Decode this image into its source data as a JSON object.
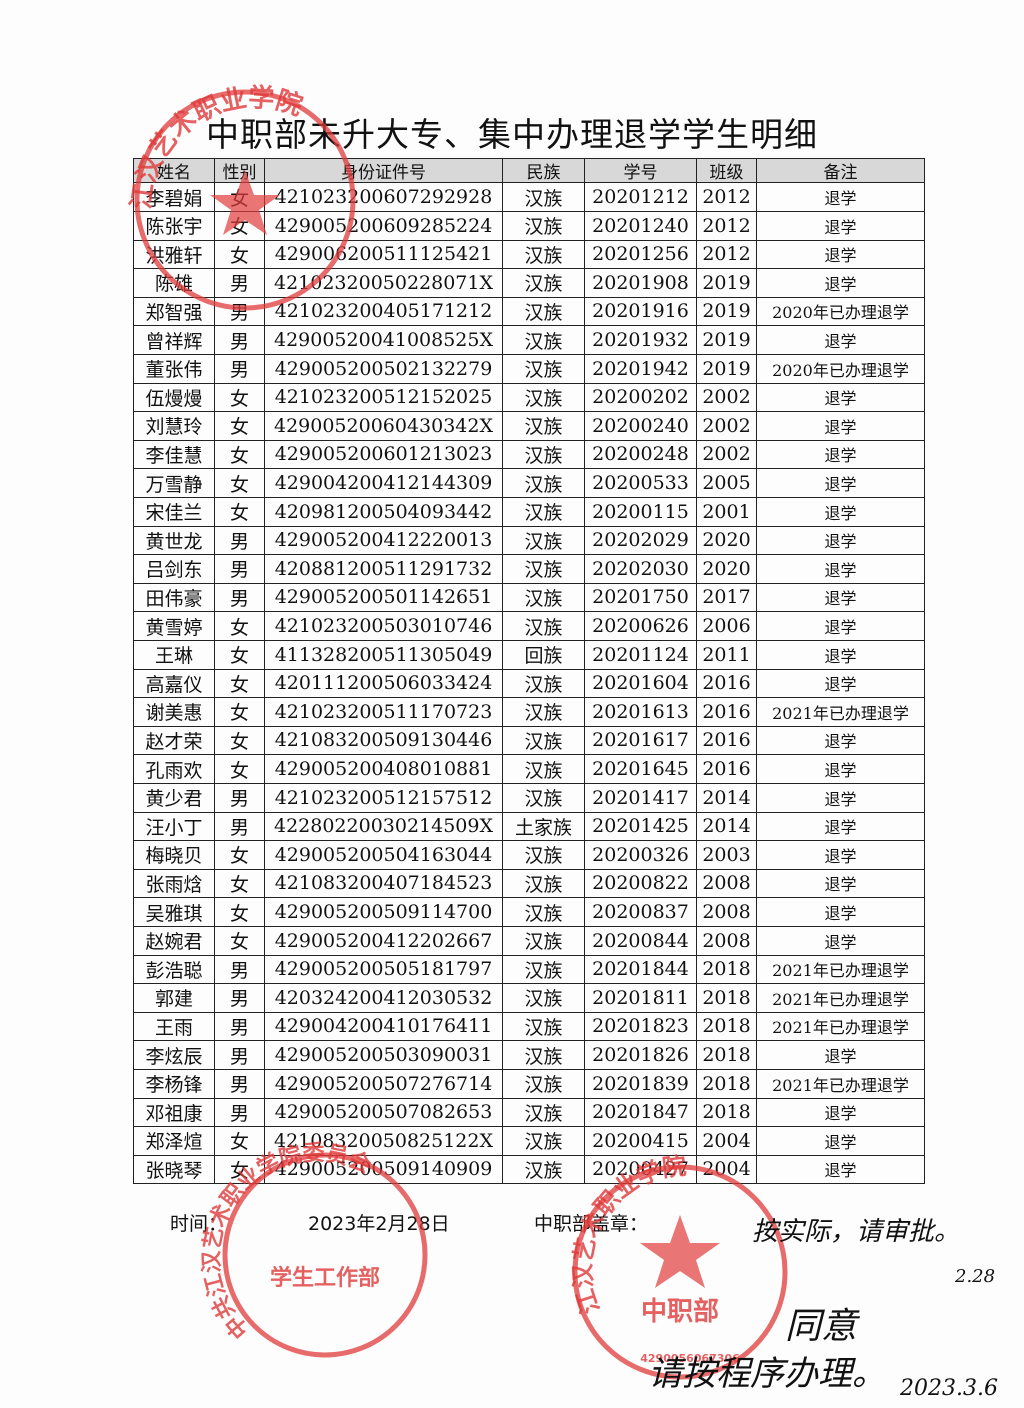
{
  "title": "中职部未升大专、集中办理退学学生明细",
  "table": {
    "header": [
      "姓名",
      "性别",
      "身份证件号",
      "民族",
      "学号",
      "班级",
      "备注"
    ],
    "rows": [
      [
        "李碧娟",
        "女",
        "421023200607292928",
        "汉族",
        "20201212",
        "2012",
        "退学"
      ],
      [
        "陈张宇",
        "女",
        "429005200609285224",
        "汉族",
        "20201240",
        "2012",
        "退学"
      ],
      [
        "洪雅轩",
        "女",
        "429006200511125421",
        "汉族",
        "20201256",
        "2012",
        "退学"
      ],
      [
        "陈雄",
        "男",
        "42102320050228071X",
        "汉族",
        "20201908",
        "2019",
        "退学"
      ],
      [
        "郑智强",
        "男",
        "421023200405171212",
        "汉族",
        "20201916",
        "2019",
        "2020年已办理退学"
      ],
      [
        "曾祥辉",
        "男",
        "42900520041008525X",
        "汉族",
        "20201932",
        "2019",
        "退学"
      ],
      [
        "董张伟",
        "男",
        "429005200502132279",
        "汉族",
        "20201942",
        "2019",
        "2020年已办理退学"
      ],
      [
        "伍熳熳",
        "女",
        "421023200512152025",
        "汉族",
        "20200202",
        "2002",
        "退学"
      ],
      [
        "刘慧玲",
        "女",
        "42900520060430342X",
        "汉族",
        "20200240",
        "2002",
        "退学"
      ],
      [
        "李佳慧",
        "女",
        "429005200601213023",
        "汉族",
        "20200248",
        "2002",
        "退学"
      ],
      [
        "万雪静",
        "女",
        "429004200412144309",
        "汉族",
        "20200533",
        "2005",
        "退学"
      ],
      [
        "宋佳兰",
        "女",
        "420981200504093442",
        "汉族",
        "20200115",
        "2001",
        "退学"
      ],
      [
        "黄世龙",
        "男",
        "429005200412220013",
        "汉族",
        "20202029",
        "2020",
        "退学"
      ],
      [
        "吕剑东",
        "男",
        "420881200511291732",
        "汉族",
        "20202030",
        "2020",
        "退学"
      ],
      [
        "田伟豪",
        "男",
        "429005200501142651",
        "汉族",
        "20201750",
        "2017",
        "退学"
      ],
      [
        "黄雪婷",
        "女",
        "421023200503010746",
        "汉族",
        "20200626",
        "2006",
        "退学"
      ],
      [
        "王琳",
        "女",
        "411328200511305049",
        "回族",
        "20201124",
        "2011",
        "退学"
      ],
      [
        "高嘉仪",
        "女",
        "420111200506033424",
        "汉族",
        "20201604",
        "2016",
        "退学"
      ],
      [
        "谢美惠",
        "女",
        "421023200511170723",
        "汉族",
        "20201613",
        "2016",
        "2021年已办理退学"
      ],
      [
        "赵才荣",
        "女",
        "421083200509130446",
        "汉族",
        "20201617",
        "2016",
        "退学"
      ],
      [
        "孔雨欢",
        "女",
        "429005200408010881",
        "汉族",
        "20201645",
        "2016",
        "退学"
      ],
      [
        "黄少君",
        "男",
        "421023200512157512",
        "汉族",
        "20201417",
        "2014",
        "退学"
      ],
      [
        "汪小丁",
        "男",
        "42280220030214509X",
        "土家族",
        "20201425",
        "2014",
        "退学"
      ],
      [
        "梅晓贝",
        "女",
        "429005200504163044",
        "汉族",
        "20200326",
        "2003",
        "退学"
      ],
      [
        "张雨焓",
        "女",
        "421083200407184523",
        "汉族",
        "20200822",
        "2008",
        "退学"
      ],
      [
        "吴雅琪",
        "女",
        "429005200509114700",
        "汉族",
        "20200837",
        "2008",
        "退学"
      ],
      [
        "赵婉君",
        "女",
        "429005200412202667",
        "汉族",
        "20200844",
        "2008",
        "退学"
      ],
      [
        "彭浩聪",
        "男",
        "429005200505181797",
        "汉族",
        "20201844",
        "2018",
        "2021年已办理退学"
      ],
      [
        "郭建",
        "男",
        "420324200412030532",
        "汉族",
        "20201811",
        "2018",
        "2021年已办理退学"
      ],
      [
        "王雨",
        "男",
        "429004200410176411",
        "汉族",
        "20201823",
        "2018",
        "2021年已办理退学"
      ],
      [
        "李炫辰",
        "男",
        "429005200503090031",
        "汉族",
        "20201826",
        "2018",
        "退学"
      ],
      [
        "李杨锋",
        "男",
        "429005200507276714",
        "汉族",
        "20201839",
        "2018",
        "2021年已办理退学"
      ],
      [
        "邓祖康",
        "男",
        "429005200507082653",
        "汉族",
        "20201847",
        "2018",
        "退学"
      ],
      [
        "郑泽煊",
        "女",
        "42108320050825122X",
        "汉族",
        "20200415",
        "2004",
        "退学"
      ],
      [
        "张晓琴",
        "女",
        "429005200509140909",
        "汉族",
        "20200427",
        "2004",
        "退学"
      ]
    ]
  },
  "footer": {
    "time_label": "时间：",
    "date": "2023年2月28日",
    "seal_label": "中职部盖章："
  },
  "stamps": {
    "top": "江汉艺术职业学院",
    "left_ring": "中共江汉艺术职业学院委员会",
    "left_center": "学生工作部",
    "right_ring": "江汉艺术职业学院",
    "right_center": "中职部",
    "right_code": "4290056067306"
  },
  "handwriting": {
    "note": "按实际，请审批。",
    "note_date": "2.28",
    "approve": "同意",
    "instruction": "请按程序办理。",
    "approve_date": "2023.3.6"
  }
}
